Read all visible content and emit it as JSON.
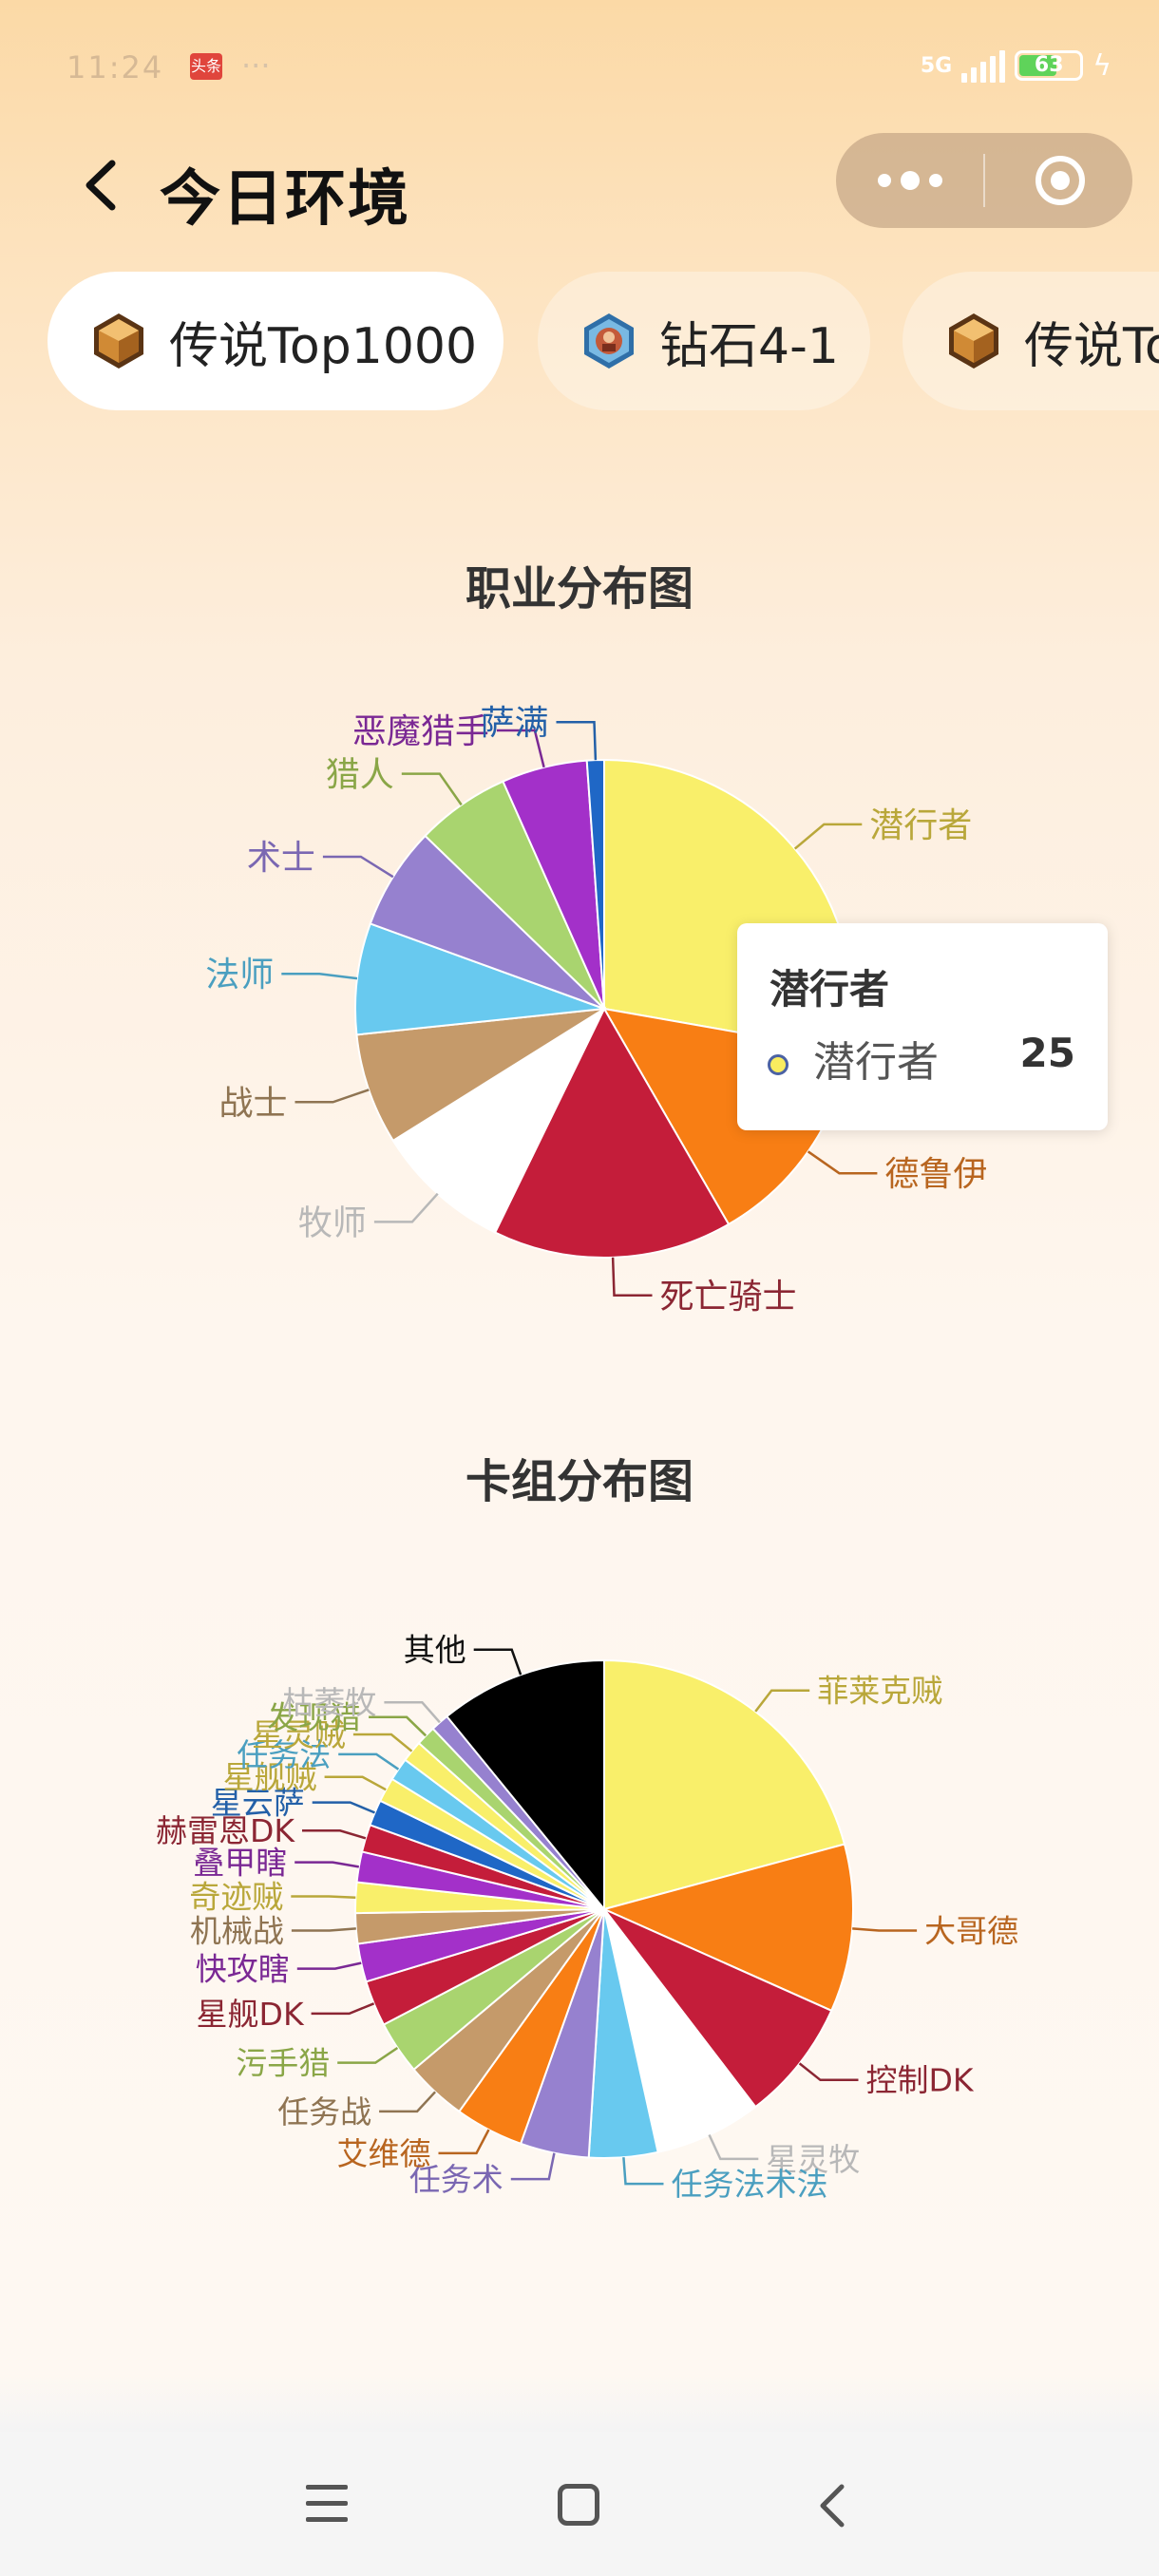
{
  "status_bar": {
    "time": "11:24",
    "badge": "头条",
    "dots": "···",
    "network": "5G",
    "battery": "63",
    "battery_level": 0.63
  },
  "header": {
    "title": "今日环境"
  },
  "tabs": [
    {
      "label": "传说Top1000",
      "icon": "legend-hexagon-icon",
      "active": true
    },
    {
      "label": "钻石4-1",
      "icon": "diamond-rank-icon",
      "active": false
    },
    {
      "label": "传说Top",
      "icon": "legend-hexagon-icon",
      "active": false
    }
  ],
  "charts": {
    "class_title": "职业分布图",
    "deck_title": "卡组分布图"
  },
  "tooltip": {
    "title": "潜行者",
    "name": "潜行者",
    "value": "25"
  },
  "chart_data": [
    {
      "type": "pie",
      "title": "职业分布图",
      "tooltip_value": {
        "name": "潜行者",
        "value": 25
      },
      "slices": [
        {
          "name": "潜行者",
          "percent": 25.0,
          "color": "#f9ef6a",
          "label_color": "#b9a73a"
        },
        {
          "name": "德鲁伊",
          "percent": 12.5,
          "color": "#f87e14",
          "label_color": "#b8651f"
        },
        {
          "name": "死亡骑士",
          "percent": 14.0,
          "color": "#c41d3a",
          "label_color": "#8b2633"
        },
        {
          "name": "牧师",
          "percent": 8.0,
          "color": "#ffffff",
          "label_color": "#b8b8b8"
        },
        {
          "name": "战士",
          "percent": 6.5,
          "color": "#c59a6a",
          "label_color": "#8f7452"
        },
        {
          "name": "法师",
          "percent": 6.5,
          "color": "#68c9ef",
          "label_color": "#4a9fc0"
        },
        {
          "name": "术士",
          "percent": 6.0,
          "color": "#9681cf",
          "label_color": "#7a67b2"
        },
        {
          "name": "猎人",
          "percent": 5.5,
          "color": "#a9d46f",
          "label_color": "#8aa647"
        },
        {
          "name": "恶魔猎手",
          "percent": 5.0,
          "color": "#a330c9",
          "label_color": "#7a2894"
        },
        {
          "name": "萨满",
          "percent": 1.0,
          "color": "#1f67c6",
          "label_color": "#2360a8"
        }
      ]
    },
    {
      "type": "pie",
      "title": "卡组分布图",
      "slices": [
        {
          "name": "菲莱克贼",
          "percent": 21.0,
          "color": "#f9ef6a",
          "label_color": "#b9a73a"
        },
        {
          "name": "大哥德",
          "percent": 11.0,
          "color": "#f87e14",
          "label_color": "#b8651f"
        },
        {
          "name": "控制DK",
          "percent": 8.0,
          "color": "#c41d3a",
          "label_color": "#8b2633"
        },
        {
          "name": "星灵牧",
          "percent": 7.0,
          "color": "#ffffff",
          "label_color": "#b8b8b8"
        },
        {
          "name": "任务法术法",
          "percent": 4.5,
          "color": "#68c9ef",
          "label_color": "#4a9fc0"
        },
        {
          "name": "任务术",
          "percent": 4.5,
          "color": "#9681cf",
          "label_color": "#7a67b2"
        },
        {
          "name": "艾维德",
          "percent": 4.5,
          "color": "#f87e14",
          "label_color": "#b8651f"
        },
        {
          "name": "任务战",
          "percent": 4.0,
          "color": "#c59a6a",
          "label_color": "#8f7452"
        },
        {
          "name": "污手猎",
          "percent": 3.5,
          "color": "#a9d46f",
          "label_color": "#8aa647"
        },
        {
          "name": "星舰DK",
          "percent": 3.0,
          "color": "#c41d3a",
          "label_color": "#8b2633"
        },
        {
          "name": "快攻瞎",
          "percent": 2.5,
          "color": "#a330c9",
          "label_color": "#7a2894"
        },
        {
          "name": "机械战",
          "percent": 2.0,
          "color": "#c59a6a",
          "label_color": "#8f7452"
        },
        {
          "name": "奇迹贼",
          "percent": 2.0,
          "color": "#f9ef6a",
          "label_color": "#b9a73a"
        },
        {
          "name": "叠甲瞎",
          "percent": 2.0,
          "color": "#a330c9",
          "label_color": "#7a2894"
        },
        {
          "name": "赫雷恩DK",
          "percent": 1.8,
          "color": "#c41d3a",
          "label_color": "#8b2633"
        },
        {
          "name": "星云萨",
          "percent": 1.7,
          "color": "#1f67c6",
          "label_color": "#2360a8"
        },
        {
          "name": "星舰贼",
          "percent": 1.6,
          "color": "#f9ef6a",
          "label_color": "#b9a73a"
        },
        {
          "name": "任务法",
          "percent": 1.5,
          "color": "#68c9ef",
          "label_color": "#4a9fc0"
        },
        {
          "name": "星灵贼",
          "percent": 1.4,
          "color": "#f9ef6a",
          "label_color": "#b9a73a"
        },
        {
          "name": "发现猎",
          "percent": 1.3,
          "color": "#a9d46f",
          "label_color": "#8aa647"
        },
        {
          "name": "枯萎牧",
          "percent": 1.2,
          "color": "#9681cf",
          "label_color": "#b8b8b8"
        },
        {
          "name": "其他",
          "percent": 11.0,
          "color": "#000000",
          "label_color": "#111111"
        }
      ]
    }
  ]
}
